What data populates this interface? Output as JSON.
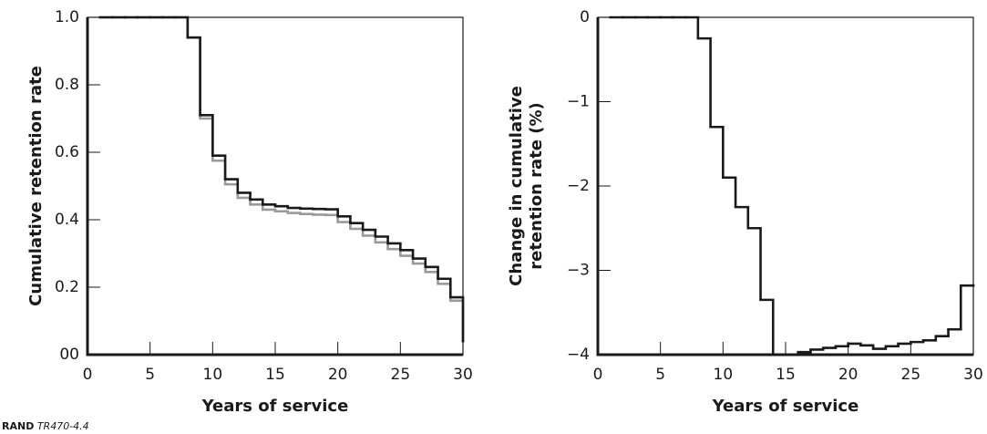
{
  "chart_data": [
    {
      "type": "step",
      "x_label": "Years of service",
      "y_label": [
        "Cumulative retention rate"
      ],
      "x": [
        1,
        2,
        3,
        4,
        5,
        6,
        7,
        8,
        9,
        10,
        11,
        12,
        13,
        14,
        15,
        16,
        17,
        18,
        19,
        20,
        21,
        22,
        23,
        24,
        25,
        26,
        27,
        28,
        29,
        30
      ],
      "series": [
        {
          "color": "#9a9a9a",
          "values": [
            1,
            1,
            1,
            1,
            1,
            1,
            1,
            0.94,
            0.7,
            0.575,
            0.505,
            0.465,
            0.445,
            0.43,
            0.425,
            0.42,
            0.417,
            0.415,
            0.414,
            0.393,
            0.373,
            0.353,
            0.333,
            0.313,
            0.293,
            0.27,
            0.245,
            0.21,
            0.16,
            0.04
          ]
        },
        {
          "color": "#1a1a1a",
          "values": [
            1,
            1,
            1,
            1,
            1,
            1,
            1,
            0.94,
            0.71,
            0.59,
            0.52,
            0.48,
            0.46,
            0.445,
            0.44,
            0.435,
            0.433,
            0.432,
            0.431,
            0.41,
            0.39,
            0.37,
            0.35,
            0.33,
            0.31,
            0.285,
            0.26,
            0.225,
            0.17,
            0.04
          ]
        }
      ],
      "xlim": [
        0,
        30
      ],
      "xticks": [
        0,
        5,
        10,
        15,
        20,
        25,
        30
      ],
      "ylim": [
        0,
        1
      ],
      "yticks": [
        {
          "value": 0,
          "label": "00"
        },
        0.2,
        0.4,
        0.6,
        0.8,
        {
          "value": 1,
          "label": "1.0"
        }
      ]
    },
    {
      "type": "step",
      "x_label": "Years of service",
      "y_label": [
        "Change in cumulative",
        "retention rate (%)"
      ],
      "x": [
        1,
        2,
        3,
        4,
        5,
        6,
        7,
        8,
        9,
        10,
        11,
        12,
        13,
        14,
        15,
        16,
        17,
        18,
        19,
        20,
        21,
        22,
        23,
        24,
        25,
        26,
        27,
        28,
        29,
        30
      ],
      "series": [
        {
          "color": "#1a1a1a",
          "values": [
            0,
            0,
            0,
            0,
            0,
            0,
            0,
            -0.25,
            -1.3,
            -1.9,
            -2.25,
            -2.5,
            -3.35,
            -4,
            -4,
            -3.97,
            -3.94,
            -3.92,
            -3.9,
            -3.87,
            -3.89,
            -3.93,
            -3.9,
            -3.87,
            -3.85,
            -3.83,
            -3.78,
            -3.7,
            -3.18,
            -3.18
          ]
        }
      ],
      "xlim": [
        0,
        30
      ],
      "xticks": [
        0,
        5,
        10,
        15,
        20,
        25,
        30
      ],
      "ylim": [
        -4,
        0
      ],
      "yticks": [
        {
          "value": -4,
          "label": "−4"
        },
        {
          "value": -3,
          "label": "−3"
        },
        {
          "value": -2,
          "label": "−2"
        },
        {
          "value": -1,
          "label": "−1"
        },
        0
      ]
    }
  ],
  "source": {
    "org": "RAND",
    "id": "TR470-4.4"
  }
}
